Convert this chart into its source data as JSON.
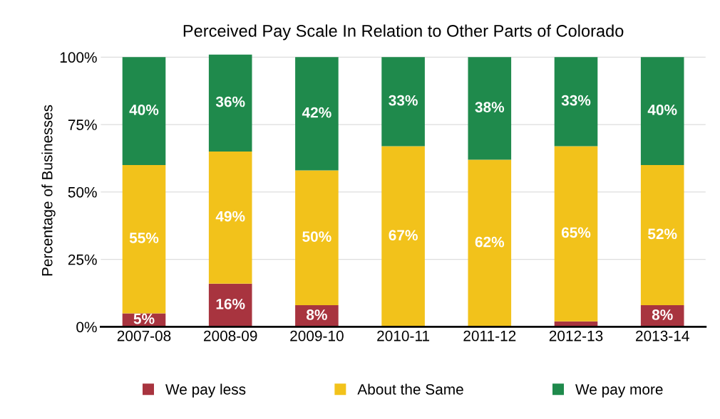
{
  "chart_data": {
    "type": "bar",
    "stacked": true,
    "title": "Perceived Pay Scale In Relation to Other Parts of Colorado",
    "ylabel": "Percentage of Businesses",
    "categories": [
      "2007-08",
      "2008-09",
      "2009-10",
      "2010-11",
      "2011-12",
      "2012-13",
      "2013-14"
    ],
    "series": [
      {
        "name": "We pay less",
        "color": "#a8343f",
        "values": [
          5,
          16,
          8,
          0,
          0,
          2,
          8
        ],
        "value_labels": [
          "5%",
          "16%",
          "8%",
          null,
          null,
          null,
          "8%"
        ]
      },
      {
        "name": "About the Same",
        "color": "#f2c21b",
        "values": [
          55,
          49,
          50,
          67,
          62,
          65,
          52
        ],
        "value_labels": [
          "55%",
          "49%",
          "50%",
          "67%",
          "62%",
          "65%",
          "52%"
        ]
      },
      {
        "name": "We pay more",
        "color": "#1f8a4c",
        "values": [
          40,
          36,
          42,
          33,
          38,
          33,
          40
        ],
        "value_labels": [
          "40%",
          "36%",
          "42%",
          "33%",
          "38%",
          "33%",
          "40%"
        ]
      }
    ],
    "ylim": [
      0,
      101
    ],
    "yticks": [
      {
        "value": 0,
        "label": "0%"
      },
      {
        "value": 25,
        "label": "25%"
      },
      {
        "value": 50,
        "label": "50%"
      },
      {
        "value": 75,
        "label": "75%"
      },
      {
        "value": 100,
        "label": "100%"
      }
    ],
    "grid": "y",
    "legend": "bottom"
  }
}
